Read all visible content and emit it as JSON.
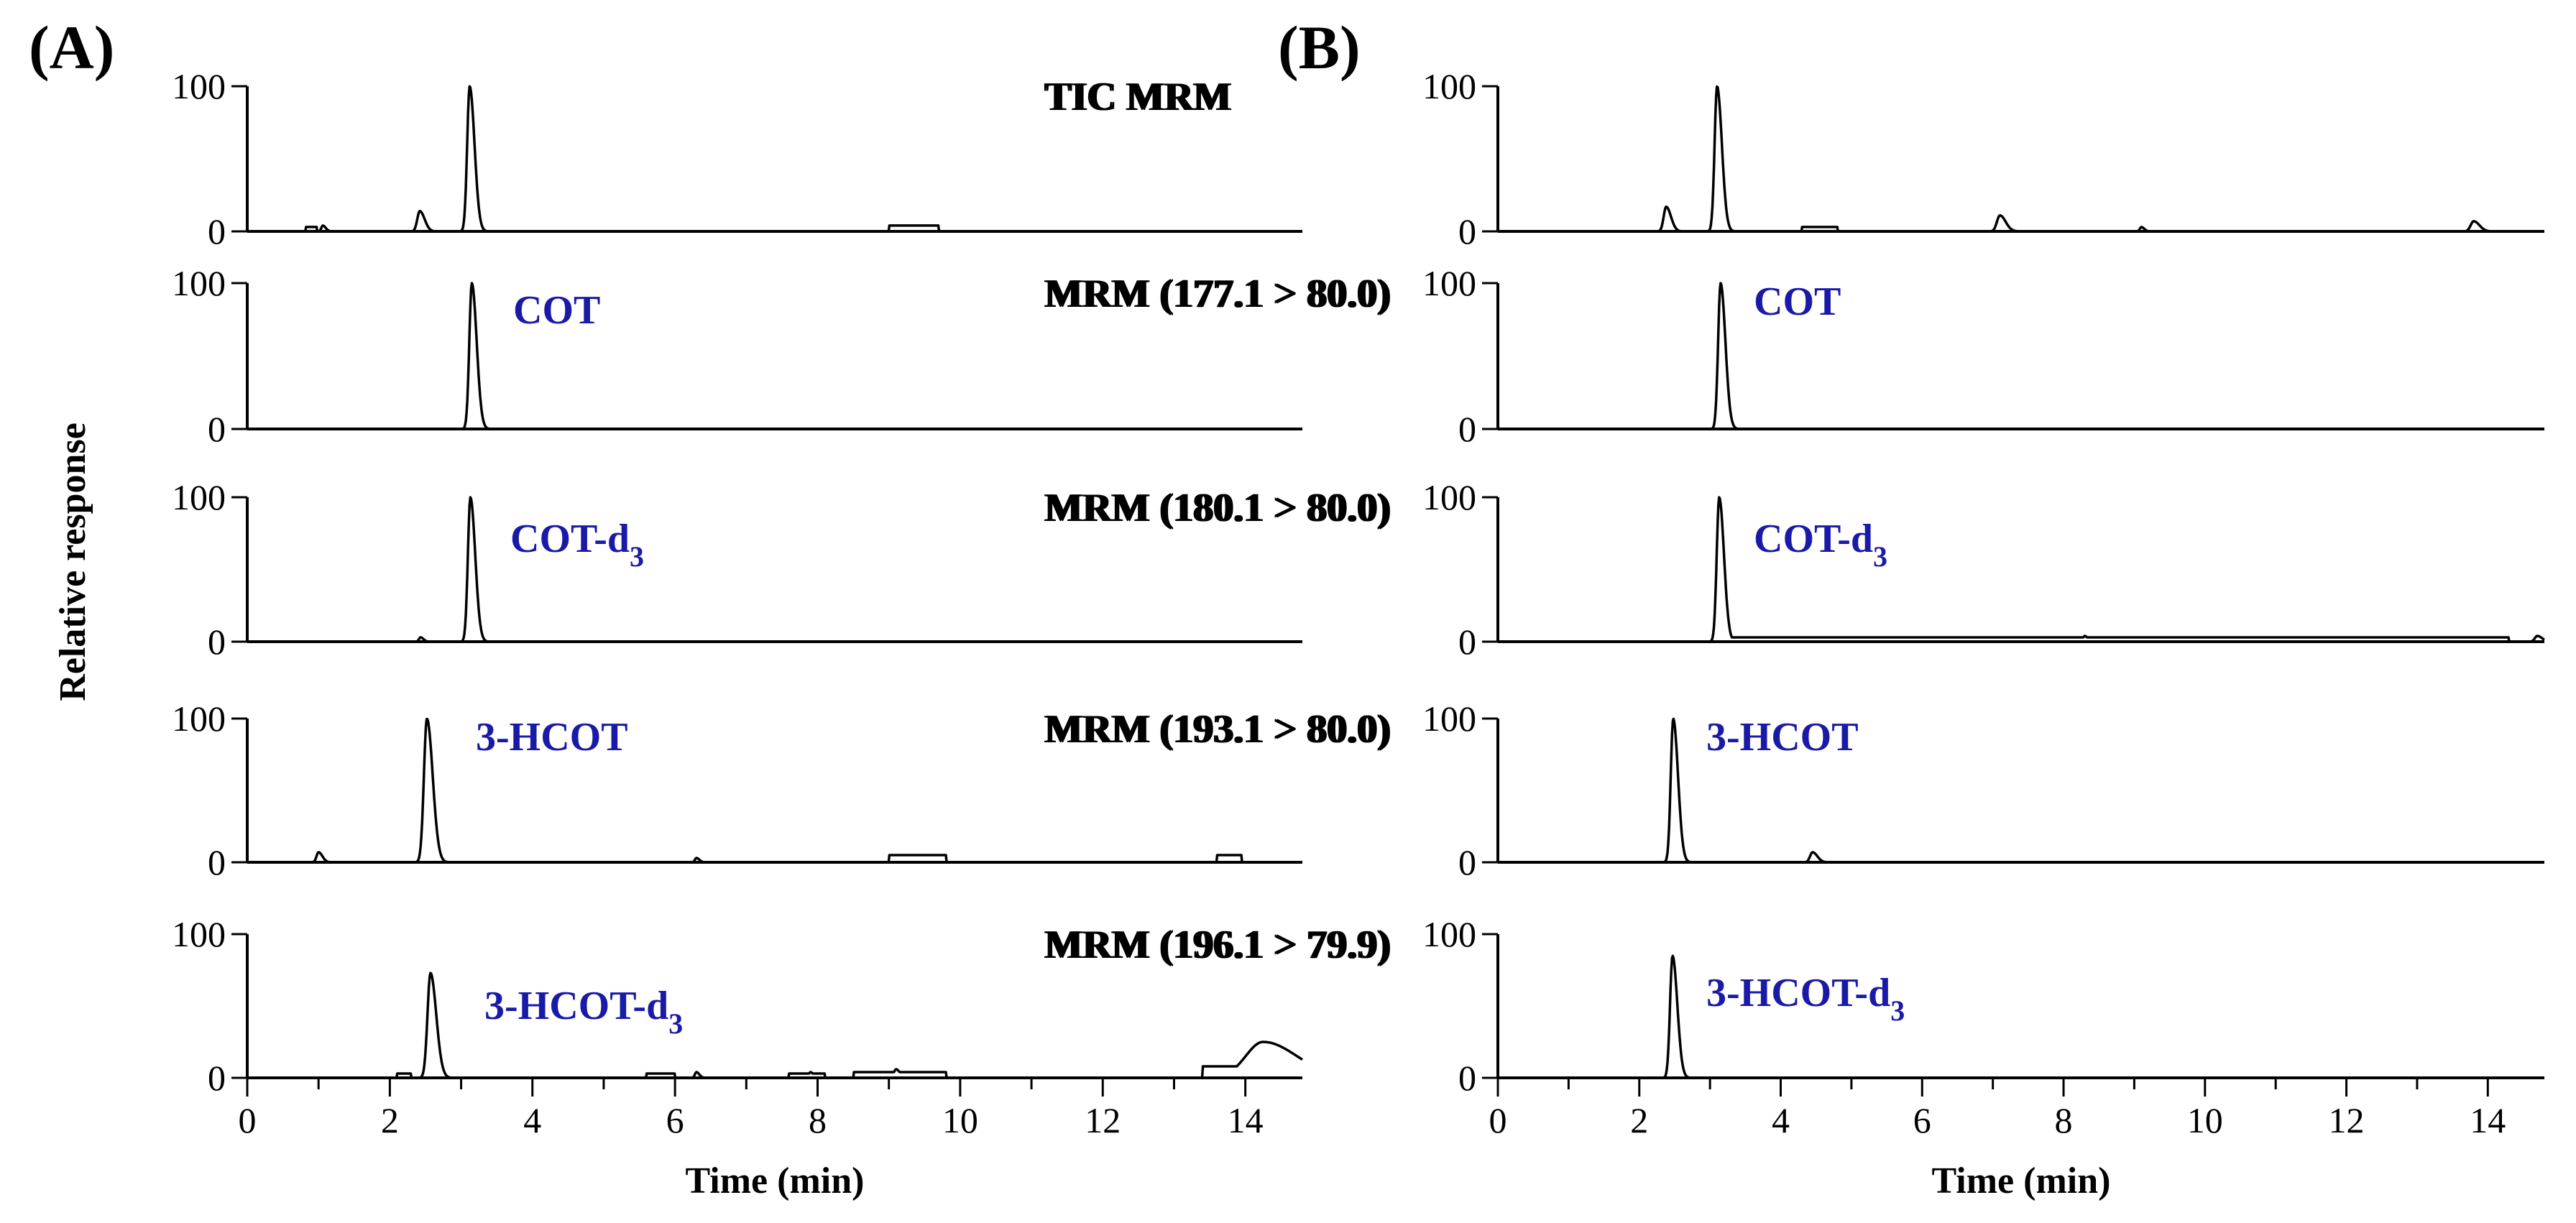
{
  "chart_data": {
    "type": "line",
    "figure_title": "",
    "y_axis_title": "Relative response",
    "y_ticks": [
      "0",
      "100"
    ],
    "panels": [
      {
        "label": "(A)",
        "xlabel": "Time (min)",
        "xlim": [
          0,
          14.8
        ],
        "x_ticks": [
          "0",
          "2",
          "4",
          "6",
          "8",
          "10",
          "12",
          "14"
        ],
        "traces": [
          {
            "title": "TIC MRM",
            "compound": "",
            "subscript": "",
            "ylim": [
              0,
              100
            ],
            "peaks": [
              {
                "rt": 3.12,
                "height": 100,
                "width": 0.05
              },
              {
                "rt": 2.42,
                "height": 14,
                "width": 0.05
              },
              {
                "rt": 1.06,
                "height": 4,
                "width": 0.03
              }
            ],
            "plateaus": [
              {
                "start": 0.82,
                "end": 0.98,
                "height": 3
              },
              {
                "start": 9.0,
                "end": 9.7,
                "height": 4
              }
            ]
          },
          {
            "title": "MRM (177.1 > 80.0)",
            "compound": "COT",
            "subscript": "",
            "ylim": [
              0,
              100
            ],
            "peaks": [
              {
                "rt": 3.15,
                "height": 100,
                "width": 0.05
              }
            ],
            "plateaus": []
          },
          {
            "title": "MRM (180.1 > 80.0)",
            "compound": "COT-d",
            "subscript": "3",
            "ylim": [
              0,
              100
            ],
            "peaks": [
              {
                "rt": 3.13,
                "height": 100,
                "width": 0.05
              },
              {
                "rt": 2.43,
                "height": 3,
                "width": 0.03
              }
            ],
            "plateaus": []
          },
          {
            "title": "MRM (193.1 > 80.0)",
            "compound": "3-HCOT",
            "subscript": "",
            "ylim": [
              0,
              100
            ],
            "peaks": [
              {
                "rt": 2.52,
                "height": 100,
                "width": 0.06
              },
              {
                "rt": 1.0,
                "height": 7,
                "width": 0.04
              },
              {
                "rt": 6.3,
                "height": 3,
                "width": 0.03
              }
            ],
            "plateaus": [
              {
                "start": 9.0,
                "end": 9.8,
                "height": 5
              },
              {
                "start": 13.6,
                "end": 13.95,
                "height": 5
              }
            ]
          },
          {
            "title": "MRM (196.1 > 79.9)",
            "compound": "3-HCOT-d",
            "subscript": "3",
            "ylim": [
              0,
              100
            ],
            "peaks": [
              {
                "rt": 2.57,
                "height": 73,
                "width": 0.06
              },
              {
                "rt": 14.25,
                "height": 25,
                "width": 0.35
              },
              {
                "rt": 6.3,
                "height": 4,
                "width": 0.03
              },
              {
                "rt": 7.9,
                "height": 4,
                "width": 0.03
              },
              {
                "rt": 9.1,
                "height": 6,
                "width": 0.04
              }
            ],
            "plateaus": [
              {
                "start": 2.1,
                "end": 2.3,
                "height": 3
              },
              {
                "start": 5.6,
                "end": 6.0,
                "height": 3
              },
              {
                "start": 7.6,
                "end": 8.1,
                "height": 3
              },
              {
                "start": 8.5,
                "end": 9.8,
                "height": 4
              },
              {
                "start": 13.4,
                "end": 13.9,
                "height": 8
              }
            ]
          }
        ]
      },
      {
        "label": "(B)",
        "xlabel": "Time (min)",
        "xlim": [
          0,
          14.8
        ],
        "x_ticks": [
          "0",
          "2",
          "4",
          "6",
          "8",
          "10",
          "12",
          "14"
        ],
        "traces": [
          {
            "title": "TIC MRM",
            "compound": "",
            "subscript": "",
            "ylim": [
              0,
              100
            ],
            "peaks": [
              {
                "rt": 3.1,
                "height": 100,
                "width": 0.05
              },
              {
                "rt": 2.38,
                "height": 17,
                "width": 0.05
              },
              {
                "rt": 7.1,
                "height": 11,
                "width": 0.06
              },
              {
                "rt": 13.8,
                "height": 7,
                "width": 0.06
              },
              {
                "rt": 9.1,
                "height": 3,
                "width": 0.03
              }
            ],
            "plateaus": [
              {
                "start": 4.3,
                "end": 4.8,
                "height": 3
              }
            ]
          },
          {
            "title": "MRM (177.1 > 80.0)",
            "compound": "COT",
            "subscript": "",
            "ylim": [
              0,
              100
            ],
            "peaks": [
              {
                "rt": 3.15,
                "height": 100,
                "width": 0.05
              }
            ],
            "plateaus": []
          },
          {
            "title": "MRM (180.1 > 80.0)",
            "compound": "COT-d",
            "subscript": "3",
            "ylim": [
              0,
              100
            ],
            "peaks": [
              {
                "rt": 3.13,
                "height": 100,
                "width": 0.05
              },
              {
                "rt": 8.3,
                "height": 4,
                "width": 0.03
              },
              {
                "rt": 14.7,
                "height": 4,
                "width": 0.05
              }
            ],
            "plateaus": [
              {
                "start": 3.3,
                "end": 14.3,
                "height": 3
              }
            ]
          },
          {
            "title": "MRM (193.1 > 80.0)",
            "compound": "3-HCOT",
            "subscript": "",
            "ylim": [
              0,
              100
            ],
            "peaks": [
              {
                "rt": 2.48,
                "height": 100,
                "width": 0.05
              },
              {
                "rt": 4.45,
                "height": 7,
                "width": 0.05
              }
            ],
            "plateaus": []
          },
          {
            "title": "MRM (196.1 > 79.9)",
            "compound": "3-HCOT-d",
            "subscript": "3",
            "ylim": [
              0,
              100
            ],
            "peaks": [
              {
                "rt": 2.47,
                "height": 85,
                "width": 0.05
              }
            ],
            "plateaus": []
          }
        ]
      }
    ]
  }
}
